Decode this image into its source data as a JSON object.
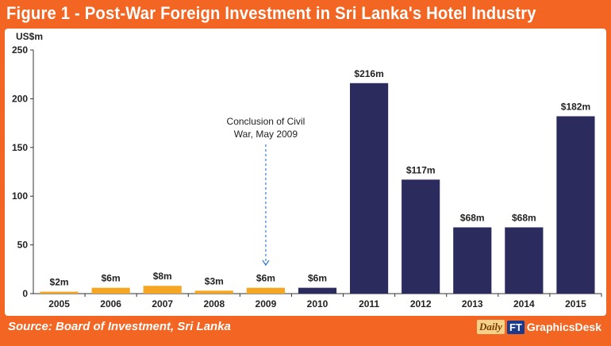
{
  "title": "Figure 1 - Post-War Foreign Investment in Sri Lanka's Hotel Industry",
  "source": "Source: Board of Investment, Sri Lanka",
  "brand": {
    "daily": "Daily",
    "ft": "FT",
    "desk": "GraphicsDesk"
  },
  "colors": {
    "background": "#f26522",
    "pre_war_bar": "#f5a623",
    "post_war_bar": "#2b2b5e",
    "annotation": "#3a7bd5"
  },
  "chart_data": {
    "type": "bar",
    "title": "Figure 1 - Post-War Foreign Investment in Sri Lanka's Hotel Industry",
    "xlabel": "",
    "ylabel": "US$m",
    "ylim": [
      0,
      250
    ],
    "yticks": [
      0,
      50,
      100,
      150,
      200,
      250
    ],
    "grid": false,
    "categories": [
      "2005",
      "2006",
      "2007",
      "2008",
      "2009",
      "2010",
      "2011",
      "2012",
      "2013",
      "2014",
      "2015"
    ],
    "values": [
      2,
      6,
      8,
      3,
      6,
      6,
      216,
      117,
      68,
      68,
      182
    ],
    "data_labels": [
      "$2m",
      "$6m",
      "$8m",
      "$3m",
      "$6m",
      "$6m",
      "$216m",
      "$117m",
      "$68m",
      "$68m",
      "$182m"
    ],
    "bar_colors": [
      "#f5a623",
      "#f5a623",
      "#f5a623",
      "#f5a623",
      "#f5a623",
      "#2b2b5e",
      "#2b2b5e",
      "#2b2b5e",
      "#2b2b5e",
      "#2b2b5e",
      "#2b2b5e"
    ],
    "annotation": {
      "lines": [
        "Conclusion of Civil",
        "War, May 2009"
      ],
      "category": "2009"
    }
  }
}
